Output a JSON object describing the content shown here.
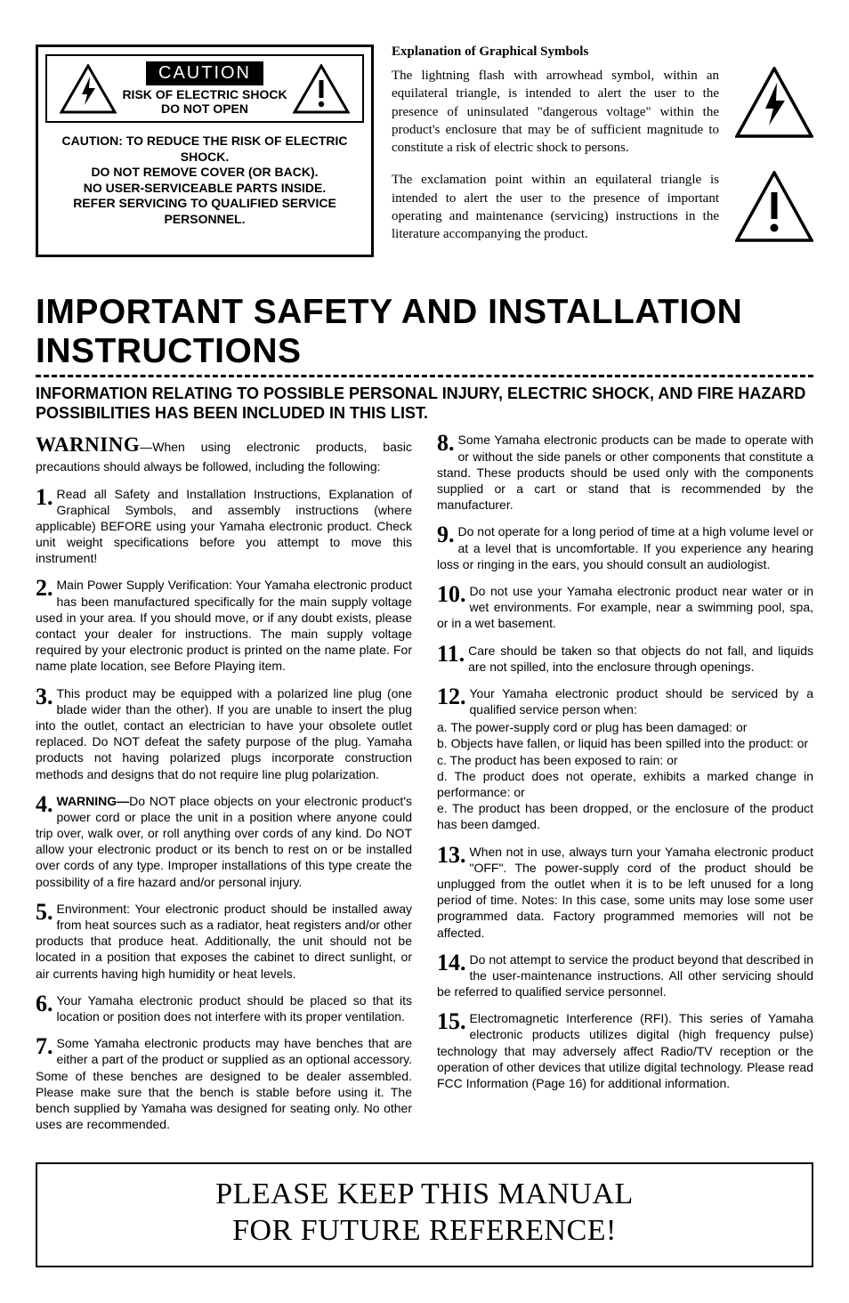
{
  "caution": {
    "label": "CAUTION",
    "sub1": "RISK OF ELECTRIC SHOCK",
    "sub2": "DO NOT OPEN",
    "body": "CAUTION: TO REDUCE THE RISK OF ELECTRIC SHOCK.\nDO NOT REMOVE COVER (OR BACK).\nNO USER-SERVICEABLE PARTS INSIDE.\nREFER SERVICING TO QUALIFIED SERVICE PERSONNEL."
  },
  "explanation": {
    "heading": "Explanation of Graphical Symbols",
    "para1": "The lightning flash with arrowhead symbol, within an equilateral triangle, is intended to alert the user to the presence of uninsulated \"dangerous voltage\" within the product's enclosure that may be of sufficient magnitude to constitute a risk of electric shock to persons.",
    "para2": "The exclamation point within an equilateral triangle is intended to alert the user to the presence of important operating and maintenance (servicing) instructions in the literature accompanying the product."
  },
  "title": "IMPORTANT SAFETY AND INSTALLATION INSTRUCTIONS",
  "subtitle": "INFORMATION RELATING TO POSSIBLE PERSONAL INJURY, ELECTRIC SHOCK, AND FIRE HAZARD POSSIBILITIES HAS BEEN INCLUDED IN THIS LIST.",
  "warning_word": "WARNING",
  "warning_lead": "—When using electronic products, basic precautions should always be followed, including the following:",
  "items_left": [
    {
      "n": "1",
      "t": "Read all Safety and Installation Instructions, Explanation of Graphical Symbols, and assembly instructions (where applicable) BEFORE using your Yamaha electronic product. Check unit weight specifications before you attempt to move this instrument!"
    },
    {
      "n": "2",
      "t": "Main Power Supply Verification: Your Yamaha electronic product has been manufactured specifically for the main supply voltage used in your area. If you should move, or if any doubt exists, please contact your dealer for instructions. The main supply voltage required by your electronic product is printed on the name plate. For name plate location, see Before Playing item."
    },
    {
      "n": "3",
      "t": "This product may be equipped with a polarized line plug (one blade wider than the other). If you are unable to insert the plug into the outlet, contact an electrician to have your obsolete outlet replaced. Do NOT defeat the safety purpose of the plug. Yamaha products not having polarized plugs incorporate construction methods and designs that do not require line plug polarization."
    },
    {
      "n": "4",
      "t": "<b>WARNING—</b>Do NOT place objects on your electronic product's power cord or place the unit in a position where anyone could trip over, walk over, or roll anything over cords of any kind. Do NOT allow your electronic product or its bench to rest on or be installed over cords of any type. Improper installations of this type create the possibility of a fire hazard and/or personal injury."
    },
    {
      "n": "5",
      "t": "Environment: Your electronic product should be installed away from heat sources such as a radiator, heat registers and/or other products that produce heat. Additionally, the unit should not be located in a position that exposes the cabinet to direct sunlight, or air currents having high humidity or heat levels."
    },
    {
      "n": "6",
      "t": "Your Yamaha electronic product should be placed so that its location or position does not interfere with its proper ventilation."
    },
    {
      "n": "7",
      "t": "Some Yamaha electronic products may have benches that are either a part of the product or supplied as an optional accessory. Some of these benches are designed to be dealer assembled. Please make sure that the bench is stable before using it. The bench supplied by Yamaha was designed for seating only. No other uses are recommended."
    }
  ],
  "items_right": [
    {
      "n": "8",
      "t": "Some Yamaha electronic products can be made to operate with or without the side panels or other components that constitute a stand. These products should be used only with the components supplied or a cart or stand that is recommended by the manufacturer."
    },
    {
      "n": "9",
      "t": "Do not operate for a long period of time at a high volume level or at a level that is uncomfortable. If you experience any hearing loss or ringing in the ears, you should consult an audiologist."
    },
    {
      "n": "10",
      "t": "Do not use your Yamaha electronic product near water or in wet environments. For example, near a swimming pool, spa, or in a wet basement."
    },
    {
      "n": "11",
      "t": "Care should be taken so that objects do not fall, and liquids are not spilled, into the enclosure through openings."
    },
    {
      "n": "12",
      "t": "Your Yamaha electronic product should be serviced by a qualified service person when:",
      "sub": [
        "a. The power-supply cord or plug has been damaged: or",
        "b. Objects have fallen, or liquid has been spilled into the product: or",
        "c. The product has been exposed to rain: or",
        "d. The product does not operate, exhibits a marked change in performance: or",
        "e. The product has been dropped, or the enclosure of the product has been damged."
      ]
    },
    {
      "n": "13",
      "t": "When not in use, always turn your Yamaha electronic product \"OFF\". The power-supply cord of the product should be unplugged from the outlet when it is to be left unused for a long period of time. Notes: In this case, some units may lose some user programmed data. Factory programmed memories will not be affected."
    },
    {
      "n": "14",
      "t": "Do not attempt to service the product beyond that described in the user-maintenance instructions. All other servicing should be referred to qualified service personnel."
    },
    {
      "n": "15",
      "t": "Electromagnetic Interference (RFI). This series of Yamaha electronic products utilizes digital (high frequency pulse) technology that may adversely affect Radio/TV reception or the operation of other devices that utilize digital technology. Please read FCC Information (Page 16) for additional information."
    }
  ],
  "footer": {
    "line1": "PLEASE KEEP THIS MANUAL",
    "line2": "FOR FUTURE REFERENCE!"
  }
}
